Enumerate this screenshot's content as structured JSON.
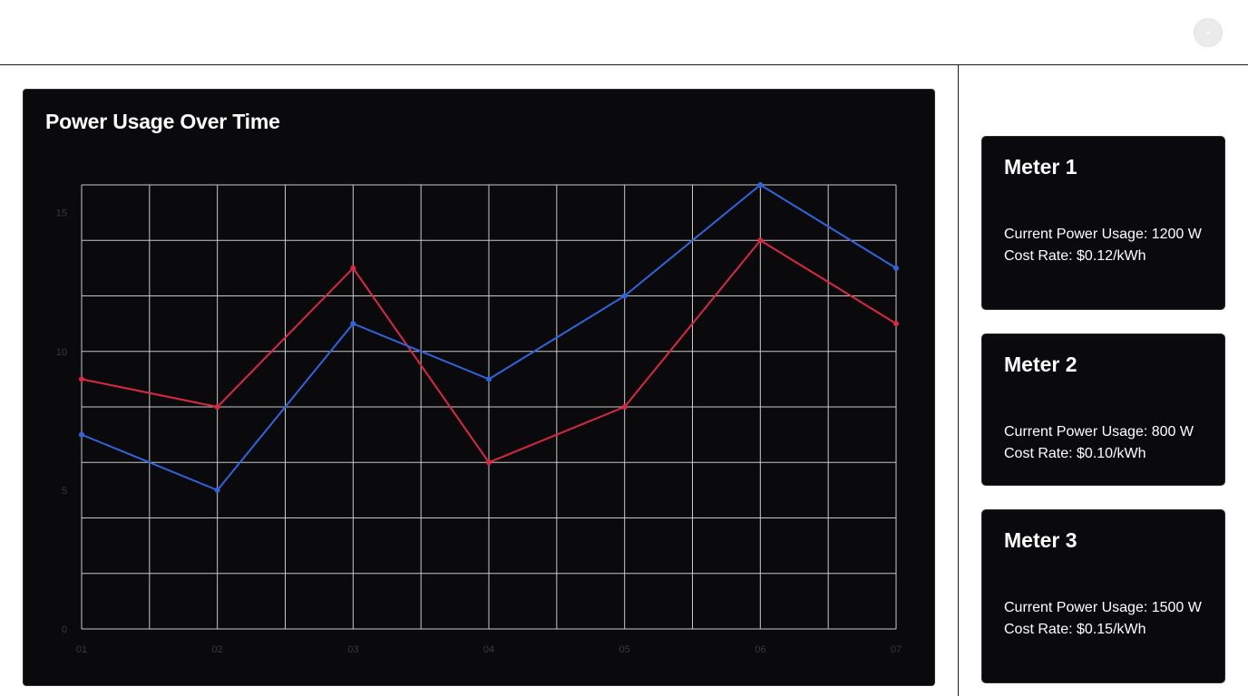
{
  "header": {
    "avatar_icon": "user-avatar-icon"
  },
  "chart_card": {
    "title": "Power Usage Over Time"
  },
  "chart_data": {
    "type": "line",
    "title": "Power Usage Over Time",
    "x": [
      "01",
      "02",
      "03",
      "04",
      "05",
      "06",
      "07"
    ],
    "y_ticks": [
      "0",
      "5",
      "10",
      "15"
    ],
    "ylim": [
      0,
      16
    ],
    "grid": true,
    "series": [
      {
        "color": "#dc2646",
        "values": [
          9,
          8,
          13,
          6,
          8,
          14,
          11
        ]
      },
      {
        "color": "#2f64e0",
        "values": [
          7,
          5,
          11,
          9,
          12,
          16,
          13
        ]
      }
    ]
  },
  "meters": [
    {
      "title": "Meter 1",
      "usage": "Current Power Usage: 1200 W",
      "rate": "Cost Rate: $0.12/kWh"
    },
    {
      "title": "Meter 2",
      "usage": "Current Power Usage: 800 W",
      "rate": "Cost Rate: $0.10/kWh"
    },
    {
      "title": "Meter 3",
      "usage": "Current Power Usage: 1500 W",
      "rate": "Cost Rate: $0.15/kWh"
    }
  ],
  "colors": {
    "card_background": "#0a0a0c",
    "grid": "#c8c8c8",
    "tick_label": "#3a3a3e"
  }
}
